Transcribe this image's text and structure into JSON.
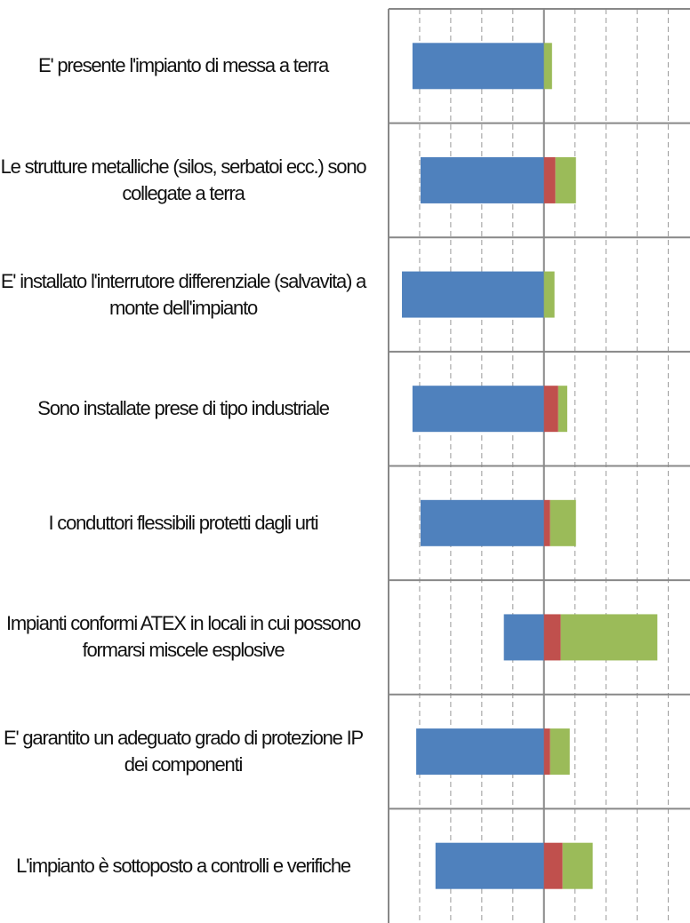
{
  "chart_data": {
    "type": "diverging-stacked-bar",
    "categories": [
      "E' presente l'impianto di messa a terra",
      "Le strutture metalliche (silos, serbatoi ecc.) sono collegate a terra",
      "E' installato l'interrutore differenziale (salvavita) a monte dell'impianto",
      "Sono installate prese di tipo industriale",
      "I conduttori flessibili protetti dagli urti",
      "Impianti conformi ATEX in locali in cui possono formarsi miscele esplosive",
      "E' garantito un adeguato grado di protezione IP dei componenti",
      "L'impianto è sottoposto a controlli e verifiche"
    ],
    "series": [
      {
        "color": "#4f81bd",
        "values": [
          -42.3,
          -39.7,
          -45.7,
          -42.3,
          -39.7,
          -12.9,
          -41.1,
          -34.9
        ]
      },
      {
        "color": "#c0504d",
        "values": [
          0,
          3.7,
          0,
          4.6,
          2,
          5.4,
          2,
          6
        ]
      },
      {
        "color": "#9bbb59",
        "values": [
          2.6,
          6.6,
          3.4,
          2.9,
          8.3,
          31.1,
          6.3,
          9.7
        ]
      }
    ],
    "xlim": [
      -50,
      47
    ],
    "xticks": [
      -50,
      -40,
      -30,
      -20,
      -10,
      0,
      10,
      20,
      30,
      40
    ],
    "grid": true
  }
}
